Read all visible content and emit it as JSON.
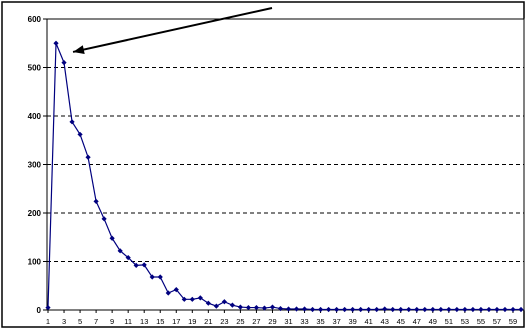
{
  "chart_data": {
    "type": "line",
    "title": "",
    "xlabel": "",
    "ylabel": "",
    "ylim": [
      0,
      600
    ],
    "yticks": [
      0,
      100,
      200,
      300,
      400,
      500,
      600
    ],
    "grid": "horizontal dashed",
    "legend": "none",
    "x_tick_labels": [
      "1",
      "3",
      "5",
      "7",
      "9",
      "11",
      "13",
      "15",
      "17",
      "19",
      "21",
      "23",
      "25",
      "27",
      "29",
      "31",
      "33",
      "35",
      "37",
      "39",
      "41",
      "43",
      "45",
      "47",
      "49",
      "51",
      "53",
      "55",
      "57",
      "59"
    ],
    "series": [
      {
        "color": "#00007f",
        "marker": "diamond",
        "x": [
          1,
          2,
          3,
          4,
          5,
          6,
          7,
          8,
          9,
          10,
          11,
          12,
          13,
          14,
          15,
          16,
          17,
          18,
          19,
          20,
          21,
          22,
          23,
          24,
          25,
          26,
          27,
          28,
          29,
          30,
          31,
          32,
          33,
          34,
          35,
          36,
          37,
          38,
          39,
          40,
          41,
          42,
          43,
          44,
          45,
          46,
          47,
          48,
          49,
          50,
          51,
          52,
          53,
          54,
          55,
          56,
          57,
          58,
          59,
          60
        ],
        "values": [
          5,
          550,
          510,
          388,
          362,
          315,
          224,
          188,
          148,
          122,
          108,
          92,
          93,
          68,
          68,
          35,
          42,
          22,
          22,
          25,
          14,
          8,
          17,
          10,
          6,
          5,
          5,
          4,
          6,
          3,
          2,
          2,
          2,
          1,
          1,
          1,
          1,
          1,
          1,
          1,
          1,
          1,
          2,
          1,
          1,
          1,
          1,
          1,
          1,
          1,
          1,
          1,
          1,
          1,
          1,
          1,
          1,
          1,
          1,
          1
        ]
      }
    ],
    "annotation": {
      "type": "arrow",
      "points_to": {
        "x": 3,
        "y": 530
      },
      "color": "#000000"
    }
  }
}
